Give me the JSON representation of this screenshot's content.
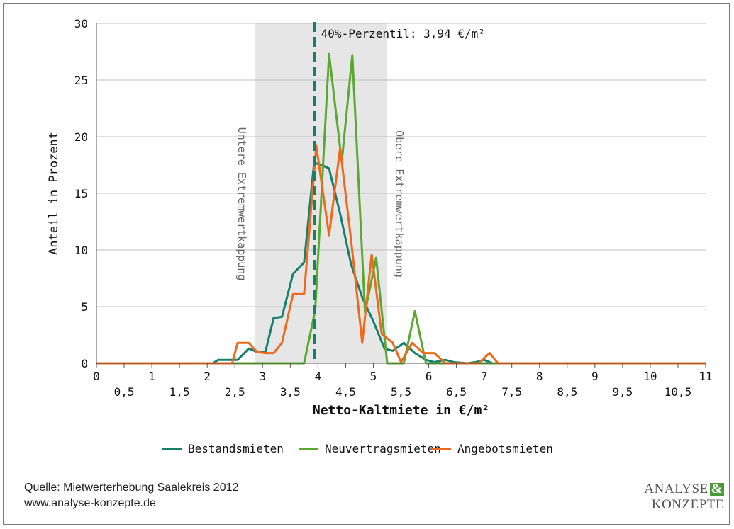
{
  "chart_data": {
    "type": "line",
    "xlabel": "Netto-Kaltmiete in €/m²",
    "ylabel": "Anteil in Prozent",
    "xlim": [
      0,
      11
    ],
    "ylim": [
      0,
      30
    ],
    "x_ticks_major": [
      "0",
      "1",
      "2",
      "3",
      "4",
      "5",
      "6",
      "7",
      "8",
      "9",
      "10",
      "11"
    ],
    "x_ticks_minor": [
      "0,5",
      "1,5",
      "2,5",
      "3,5",
      "4,5",
      "5,5",
      "6,5",
      "7,5",
      "8,5",
      "9,5",
      "10,5"
    ],
    "y_ticks": [
      "0",
      "5",
      "10",
      "15",
      "20",
      "25",
      "30"
    ],
    "grid": "horizontal",
    "shaded_band": {
      "x_from": 2.87,
      "x_to": 5.25,
      "color": "#e6e6e6"
    },
    "band_left_label": "Untere Extremwertkappung",
    "band_right_label": "Obere Extremwertkappung",
    "percentile_line": {
      "x": 3.94,
      "label": "40%-Perzentil: 3,94 €/m²",
      "color": "#17806d"
    },
    "legend_position": "bottom",
    "series": [
      {
        "name": "Bestandsmieten",
        "color": "#17806d",
        "points": [
          [
            0,
            0
          ],
          [
            2.1,
            0
          ],
          [
            2.2,
            0.3
          ],
          [
            2.4,
            0.3
          ],
          [
            2.55,
            0.3
          ],
          [
            2.75,
            1.3
          ],
          [
            2.9,
            1
          ],
          [
            3.05,
            1
          ],
          [
            3.2,
            4
          ],
          [
            3.35,
            4.1
          ],
          [
            3.55,
            7.9
          ],
          [
            3.75,
            8.9
          ],
          [
            3.93,
            17.7
          ],
          [
            4.07,
            17.5
          ],
          [
            4.2,
            17.2
          ],
          [
            4.4,
            13.2
          ],
          [
            4.6,
            8.7
          ],
          [
            4.8,
            5.8
          ],
          [
            5.0,
            3.7
          ],
          [
            5.2,
            1.3
          ],
          [
            5.35,
            1.1
          ],
          [
            5.55,
            1.8
          ],
          [
            5.75,
            0.9
          ],
          [
            5.95,
            0.3
          ],
          [
            6.1,
            0.1
          ],
          [
            6.3,
            0.3
          ],
          [
            6.45,
            0.1
          ],
          [
            6.7,
            0
          ],
          [
            6.85,
            0.1
          ],
          [
            7.0,
            0.3
          ],
          [
            7.15,
            0
          ],
          [
            11,
            0
          ]
        ]
      },
      {
        "name": "Neuvertragsmieten",
        "color": "#5aa832",
        "points": [
          [
            0,
            0
          ],
          [
            3.75,
            0
          ],
          [
            3.95,
            4.7
          ],
          [
            4.2,
            27.3
          ],
          [
            4.43,
            17.8
          ],
          [
            4.62,
            27.2
          ],
          [
            4.85,
            4.5
          ],
          [
            5.05,
            9.3
          ],
          [
            5.25,
            0
          ],
          [
            5.55,
            0
          ],
          [
            5.75,
            4.6
          ],
          [
            5.95,
            0
          ],
          [
            11,
            0
          ]
        ]
      },
      {
        "name": "Angebotsmieten",
        "color": "#ee6a1a",
        "points": [
          [
            0,
            0
          ],
          [
            2.45,
            0
          ],
          [
            2.55,
            1.8
          ],
          [
            2.75,
            1.8
          ],
          [
            2.9,
            1
          ],
          [
            3.05,
            0.9
          ],
          [
            3.2,
            0.9
          ],
          [
            3.35,
            1.8
          ],
          [
            3.55,
            6.1
          ],
          [
            3.75,
            6.1
          ],
          [
            3.97,
            19.2
          ],
          [
            4.2,
            11.3
          ],
          [
            4.4,
            19
          ],
          [
            4.6,
            10.8
          ],
          [
            4.8,
            1.8
          ],
          [
            4.97,
            9.6
          ],
          [
            5.15,
            2.6
          ],
          [
            5.35,
            1.8
          ],
          [
            5.5,
            0.1
          ],
          [
            5.7,
            1.8
          ],
          [
            5.9,
            0.9
          ],
          [
            6.1,
            0.9
          ],
          [
            6.3,
            0
          ],
          [
            6.9,
            0
          ],
          [
            7.1,
            0.9
          ],
          [
            7.25,
            0
          ],
          [
            11,
            0
          ]
        ]
      }
    ]
  },
  "footer": {
    "source_line1": "Quelle: Mietwerterhebung Saalekreis 2012",
    "source_line2": "www.analyse-konzepte.de"
  },
  "logo": {
    "line1_word": "ANALYSE",
    "line1_amp": "&",
    "line2": "KONZEPTE"
  }
}
